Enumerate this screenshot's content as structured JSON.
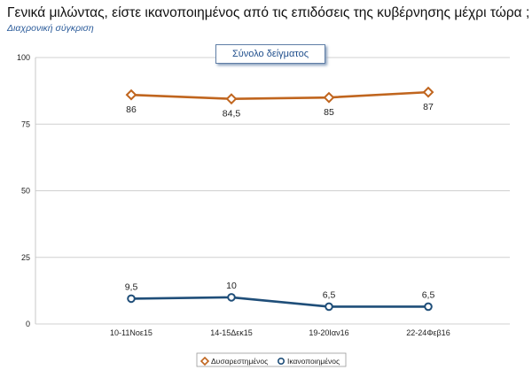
{
  "title": "Γενικά μιλώντας, είστε ικανοποιημένος από τις επιδόσεις της κυβέρνησης μέχρι τώρα ;",
  "subtitle": "Διαχρονική σύγκριση",
  "box_label": "Σύνολο δείγματος",
  "colors": {
    "dissatisfied": "#c0651e",
    "satisfied": "#1f4e79",
    "grid": "#d0d0d0"
  },
  "chart_data": {
    "type": "line",
    "categories": [
      "10-11Νοε15",
      "14-15Δεκ15",
      "19-20Ιαν16",
      "22-24Φεβ16"
    ],
    "series": [
      {
        "name": "Δυσαρεστημένος",
        "values": [
          86,
          84.5,
          85,
          87
        ],
        "labels": [
          "86",
          "84,5",
          "85",
          "87"
        ],
        "marker": "diamond",
        "color": "#c0651e"
      },
      {
        "name": "Ικανοποιημένος",
        "values": [
          9.5,
          10,
          6.5,
          6.5
        ],
        "labels": [
          "9,5",
          "10",
          "6,5",
          "6,5"
        ],
        "marker": "circle",
        "color": "#1f4e79"
      }
    ],
    "yticks": [
      0,
      25,
      50,
      75,
      100
    ],
    "ylim": [
      0,
      100
    ],
    "grid": true,
    "legend": "bottom-center"
  }
}
